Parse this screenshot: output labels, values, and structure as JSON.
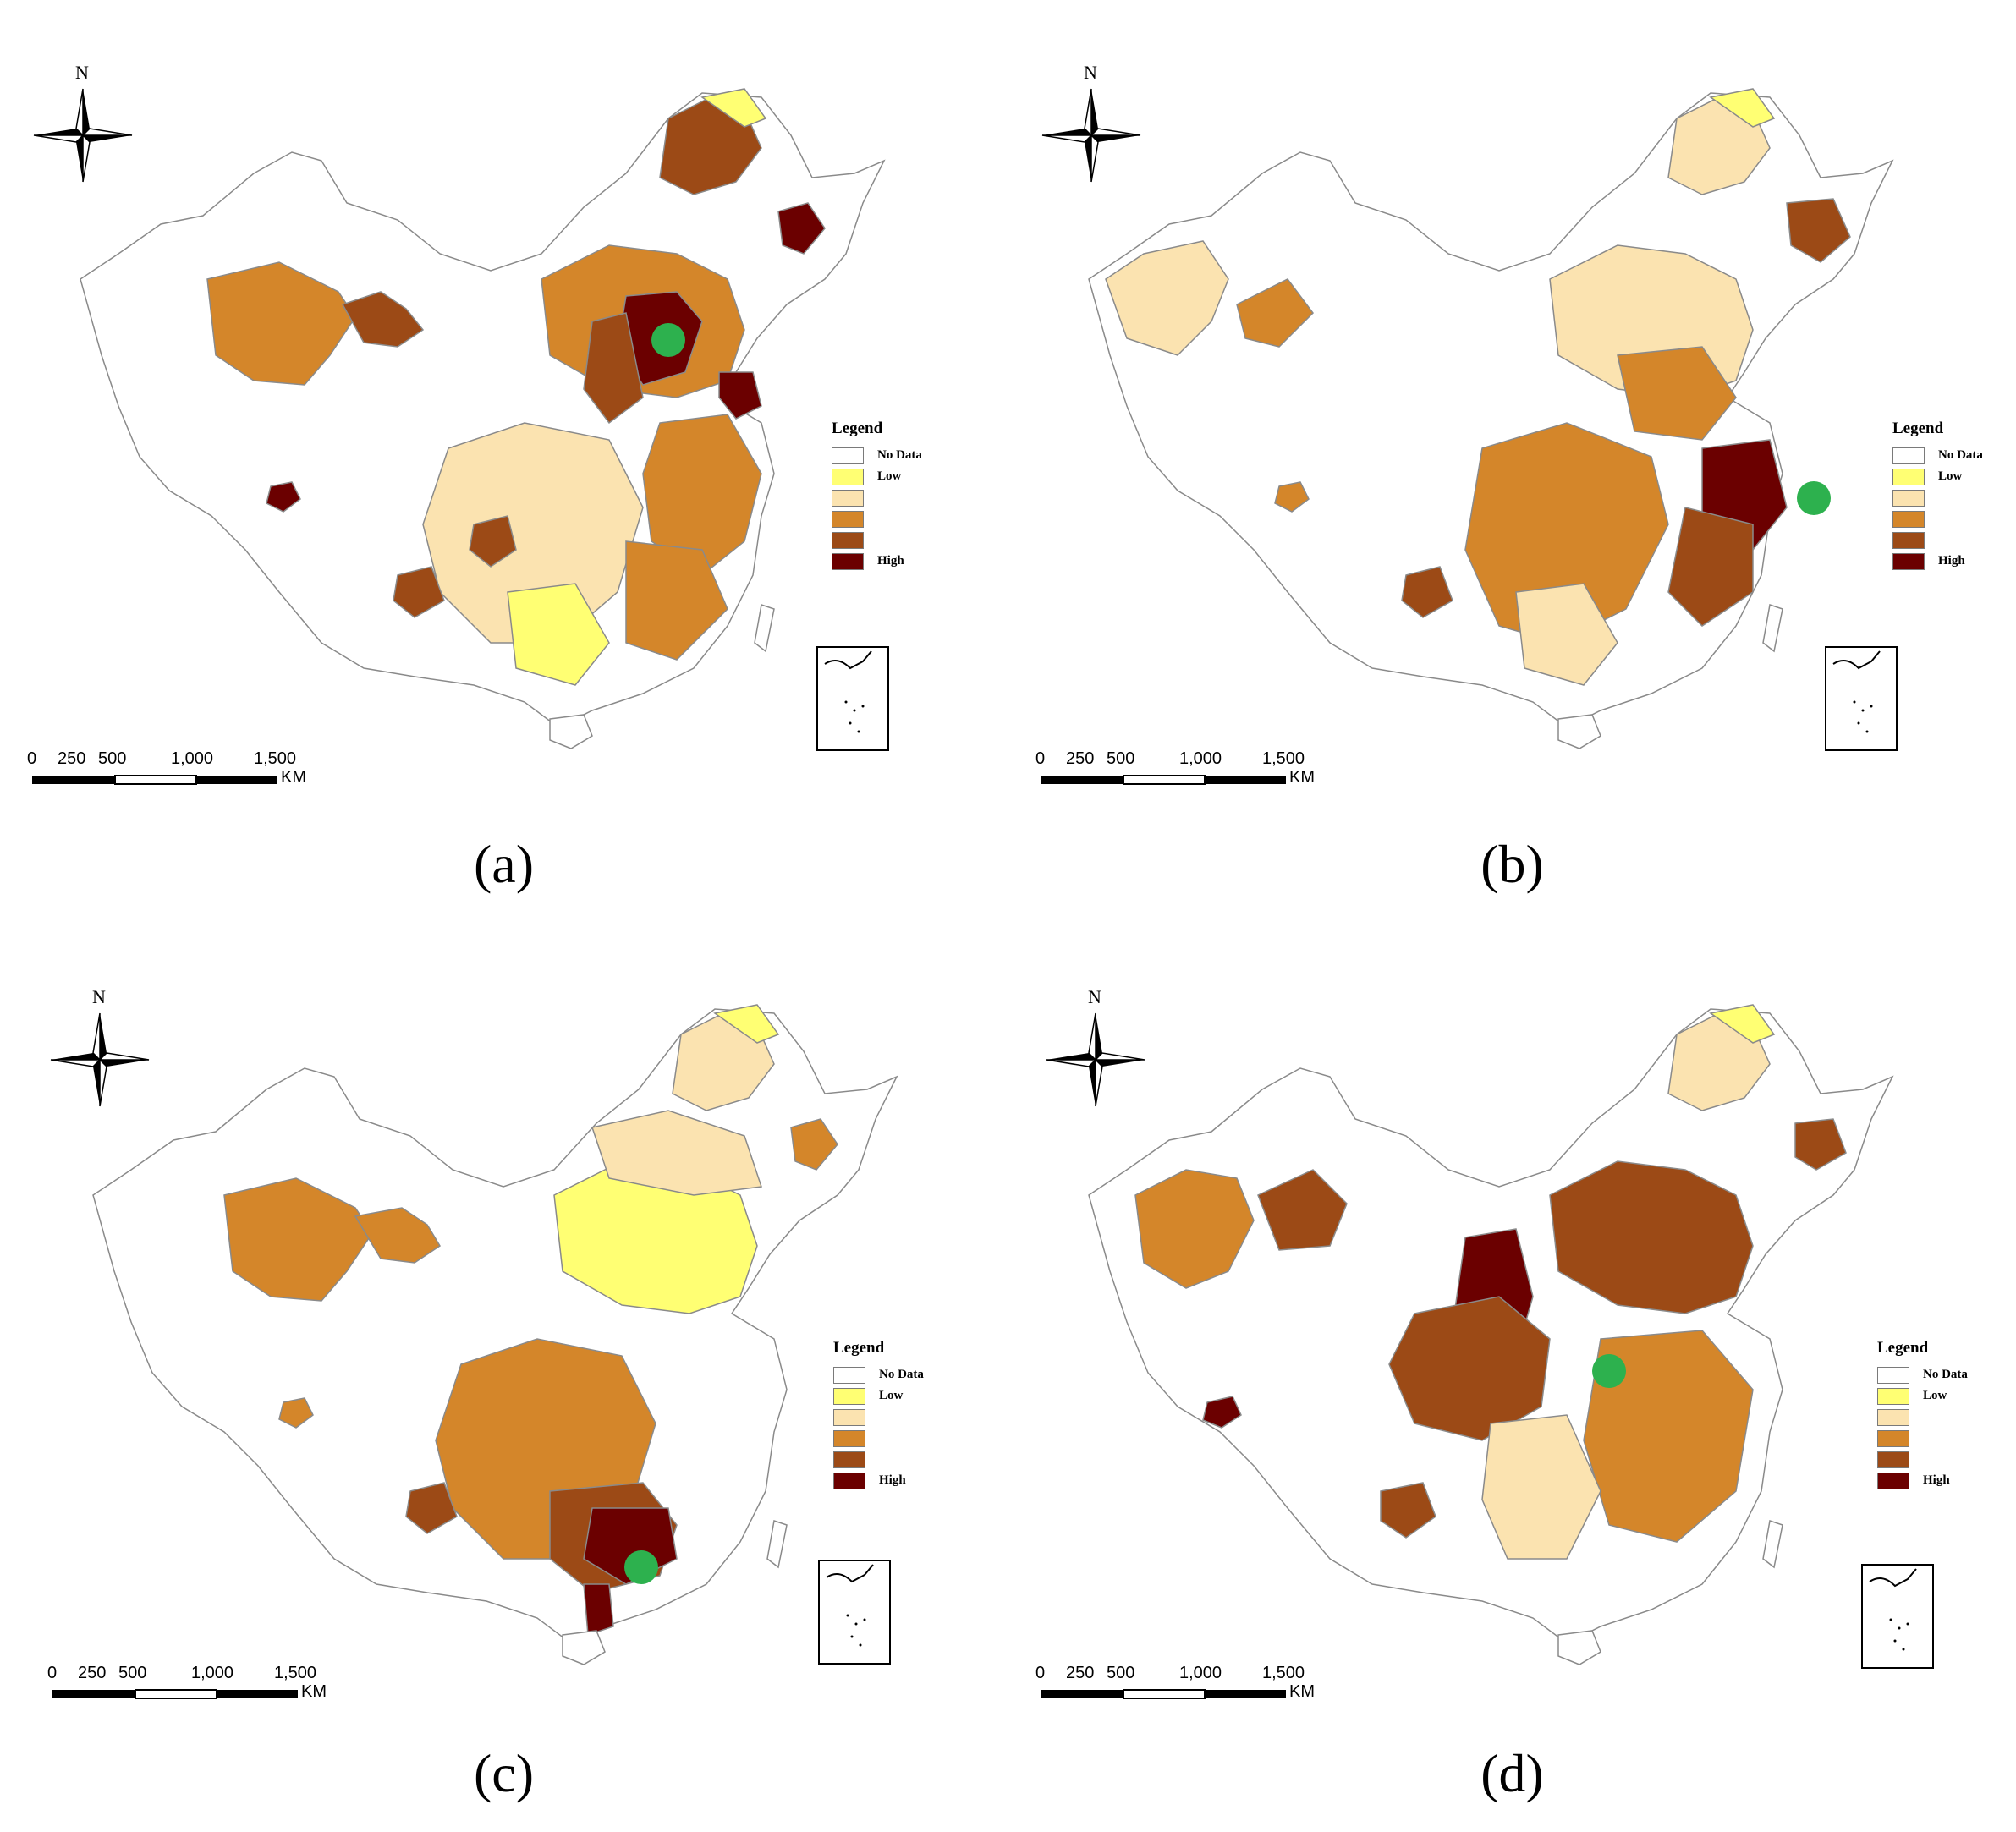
{
  "figure": {
    "panels": [
      {
        "id": "a",
        "label": "(a)",
        "hotspot": "north"
      },
      {
        "id": "b",
        "label": "(b)",
        "hotspot": "east"
      },
      {
        "id": "c",
        "label": "(c)",
        "hotspot": "south"
      },
      {
        "id": "d",
        "label": "(d)",
        "hotspot": "central"
      }
    ]
  },
  "legend": {
    "title": "Legend",
    "items": [
      {
        "label": "No Data",
        "color": "#ffffff"
      },
      {
        "label": "Low",
        "color": "#ffff73"
      },
      {
        "label": "",
        "color": "#fbe3b0"
      },
      {
        "label": "",
        "color": "#d4862a"
      },
      {
        "label": "",
        "color": "#9c4a16"
      },
      {
        "label": "High",
        "color": "#6b0000"
      }
    ]
  },
  "north_arrow": {
    "label": "N"
  },
  "scale_bar": {
    "ticks": [
      "0",
      "250",
      "500",
      "1,000",
      "1,500"
    ],
    "unit": "KM"
  },
  "colors": {
    "outline": "#8a8a8a",
    "marker": "#2db14e",
    "no_data": "#ffffff",
    "low": "#ffff73",
    "level2": "#fbe3b0",
    "level3": "#d4862a",
    "level4": "#9c4a16",
    "high": "#6b0000"
  }
}
